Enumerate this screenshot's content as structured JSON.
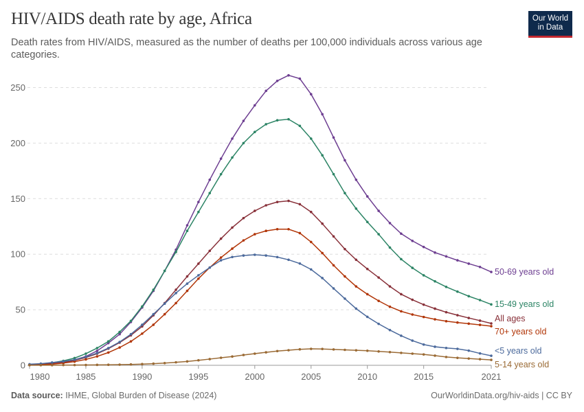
{
  "header": {
    "title": "HIV/AIDS death rate by age, Africa",
    "subtitle": "Death rates from HIV/AIDS, measured as the number of deaths per 100,000 individuals across various age categories.",
    "logo_text": "Our World in Data"
  },
  "footer": {
    "source_label": "Data source:",
    "source": "IHME, Global Burden of Disease (2024)",
    "url": "OurWorldinData.org/hiv-aids | CC BY"
  },
  "chart_data": {
    "type": "line",
    "title": "HIV/AIDS death rate by age, Africa",
    "xlim": [
      1980,
      2021
    ],
    "ylim": [
      0,
      260
    ],
    "x_ticks": [
      "1980",
      "1985",
      "1990",
      "1995",
      "2000",
      "2005",
      "2010",
      "2015",
      "2021"
    ],
    "y_ticks": [
      "0",
      "50",
      "100",
      "150",
      "200",
      "250"
    ],
    "grid": "horizontal dashed",
    "legend": "inline labels at right end",
    "x": [
      1980,
      1981,
      1982,
      1983,
      1984,
      1985,
      1986,
      1987,
      1988,
      1989,
      1990,
      1991,
      1992,
      1993,
      1994,
      1995,
      1996,
      1997,
      1998,
      1999,
      2000,
      2001,
      2002,
      2003,
      2004,
      2005,
      2006,
      2007,
      2008,
      2009,
      2010,
      2011,
      2012,
      2013,
      2014,
      2015,
      2016,
      2017,
      2018,
      2019,
      2020,
      2021
    ],
    "series": [
      {
        "name": "50-69 years old",
        "color": "#6d3e91",
        "values": [
          0.5,
          1,
          1.5,
          3,
          5,
          8,
          13,
          20,
          28,
          39,
          52,
          67,
          85,
          104,
          126,
          147,
          167,
          186,
          204,
          220,
          234,
          247,
          256,
          261,
          258,
          244,
          226,
          205,
          184.5,
          167,
          152,
          139,
          128,
          118.5,
          112,
          106.5,
          101.5,
          98,
          94.5,
          91.5,
          88.5,
          84
        ]
      },
      {
        "name": "15-49 years old",
        "color": "#2c8465",
        "values": [
          0.7,
          1.3,
          2.3,
          4,
          6.5,
          10.5,
          15.5,
          21.5,
          30,
          40,
          53,
          68,
          85,
          102,
          121,
          138,
          155,
          172,
          187,
          200,
          210,
          217,
          220.5,
          221.5,
          215.5,
          204,
          189,
          172,
          155,
          141,
          129,
          118,
          106,
          95.5,
          87.7,
          81,
          75.6,
          70.6,
          66.3,
          62.2,
          58.7,
          54.8
        ]
      },
      {
        "name": "All ages",
        "color": "#883039",
        "values": [
          0.5,
          1,
          1.5,
          2.5,
          4.5,
          7,
          10.5,
          15,
          20.5,
          27,
          35,
          45,
          56,
          68,
          80,
          91.5,
          103,
          114,
          124,
          132.5,
          139,
          144,
          147,
          148,
          145,
          138,
          127.5,
          116,
          104.6,
          95,
          86.7,
          79,
          71,
          64,
          59,
          54.6,
          51,
          47.8,
          45.1,
          42.6,
          40.2,
          37.7
        ]
      },
      {
        "name": "70+ years old",
        "color": "#b13507",
        "values": [
          0.3,
          0.6,
          1,
          2,
          3.3,
          5.3,
          8,
          11.5,
          16,
          21.5,
          28.5,
          36.5,
          46,
          56,
          67,
          78,
          88,
          97,
          105,
          112.4,
          118,
          121,
          122.5,
          122.5,
          119,
          111,
          101,
          90,
          80,
          71,
          64,
          58,
          52.7,
          48.6,
          45.7,
          43.5,
          41.4,
          39.7,
          38.5,
          37.5,
          36.4,
          35.2
        ]
      },
      {
        "name": "<5 years old",
        "color": "#4c6a9c",
        "values": [
          1,
          1.5,
          2.5,
          3.5,
          5,
          7.5,
          11,
          15.5,
          21,
          28,
          36.5,
          46,
          55.5,
          65,
          73.5,
          81,
          88,
          94.5,
          97.5,
          98.8,
          99.5,
          98.8,
          97.4,
          95,
          91.6,
          86.3,
          78.5,
          69.2,
          60,
          51,
          43.6,
          37.3,
          31.7,
          26.6,
          22.2,
          18.7,
          16.7,
          15.6,
          14.8,
          13.2,
          10.7,
          8.6
        ]
      },
      {
        "name": "5-14 years old",
        "color": "#9a6a34",
        "values": [
          0.1,
          0.1,
          0.1,
          0.2,
          0.2,
          0.3,
          0.4,
          0.5,
          0.6,
          0.8,
          1.1,
          1.5,
          2,
          2.7,
          3.5,
          4.5,
          5.6,
          6.8,
          7.9,
          9.3,
          10.5,
          11.7,
          12.8,
          13.6,
          14.4,
          14.8,
          14.7,
          14.3,
          13.9,
          13.5,
          13.1,
          12.5,
          11.9,
          11.2,
          10.5,
          9.8,
          8.7,
          7.5,
          6.7,
          6.1,
          5.5,
          4.9
        ]
      }
    ]
  }
}
